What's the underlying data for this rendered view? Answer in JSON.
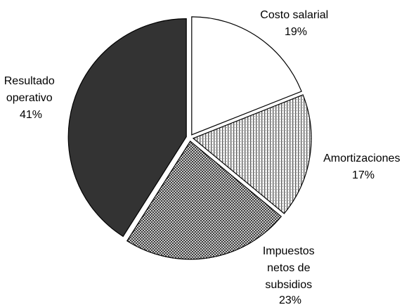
{
  "chart_data": {
    "type": "pie",
    "title": "",
    "legend": "none",
    "start_angle_deg": 0,
    "direction": "clockwise",
    "slices": [
      {
        "label_lines": [
          "Costo salarial"
        ],
        "label": "Costo salarial",
        "value": 19,
        "value_label": "19%",
        "fill": "white",
        "exploded": true
      },
      {
        "label_lines": [
          "Amortizaciones"
        ],
        "label": "Amortizaciones",
        "value": 17,
        "value_label": "17%",
        "fill": "vertical-stripes",
        "exploded": true
      },
      {
        "label_lines": [
          "Impuestos",
          "netos de",
          "subsidios"
        ],
        "label": "Impuestos netos de subsidios",
        "value": 23,
        "value_label": "23%",
        "fill": "crosshatch",
        "exploded": true
      },
      {
        "label_lines": [
          "Resultado",
          "operativo"
        ],
        "label": "Resultado operativo",
        "value": 41,
        "value_label": "41%",
        "fill": "#333333",
        "exploded": true
      }
    ]
  }
}
